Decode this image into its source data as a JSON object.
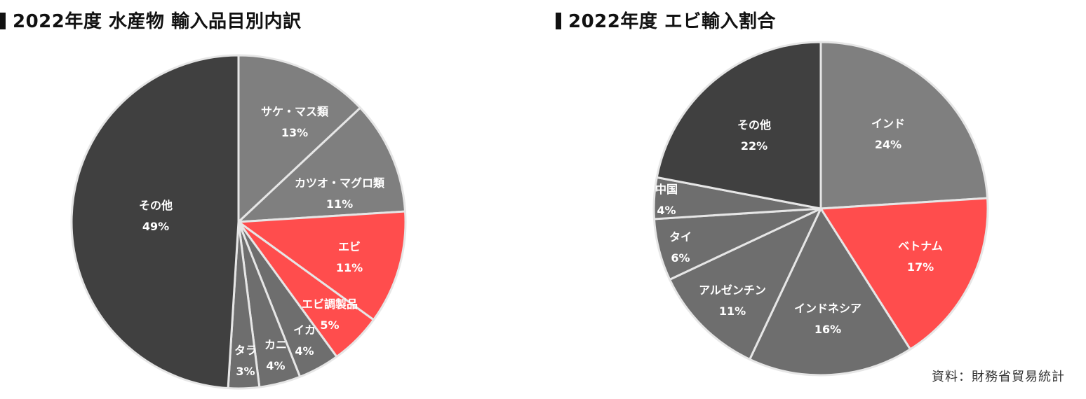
{
  "chart_data": [
    {
      "type": "pie",
      "title": "2022年度 水産物 輸入品目別内訳",
      "unit": "%",
      "slices": [
        {
          "label": "サケ・マス類",
          "value": 13,
          "value_label": "13%",
          "color": "#7f7f7f"
        },
        {
          "label": "カツオ・マグロ類",
          "value": 11,
          "value_label": "11%",
          "color": "#7f7f7f"
        },
        {
          "label": "エビ",
          "value": 11,
          "value_label": "11%",
          "color": "#ff4d4d"
        },
        {
          "label": "エビ調製品",
          "value": 5,
          "value_label": "5%",
          "color": "#ff4d4d"
        },
        {
          "label": "イカ",
          "value": 4,
          "value_label": "4%",
          "color": "#6e6e6e"
        },
        {
          "label": "カニ",
          "value": 4,
          "value_label": "4%",
          "color": "#6e6e6e"
        },
        {
          "label": "タラ",
          "value": 3,
          "value_label": "3%",
          "color": "#6e6e6e"
        },
        {
          "label": "その他",
          "value": 49,
          "value_label": "49%",
          "color": "#404040"
        }
      ]
    },
    {
      "type": "pie",
      "title": "2022年度 エビ輸入割合",
      "unit": "%",
      "slices": [
        {
          "label": "インド",
          "value": 24,
          "value_label": "24%",
          "color": "#7f7f7f"
        },
        {
          "label": "ベトナム",
          "value": 17,
          "value_label": "17%",
          "color": "#ff4d4d"
        },
        {
          "label": "インドネシア",
          "value": 16,
          "value_label": "16%",
          "color": "#6e6e6e"
        },
        {
          "label": "アルゼンチン",
          "value": 11,
          "value_label": "11%",
          "color": "#6e6e6e"
        },
        {
          "label": "タイ",
          "value": 6,
          "value_label": "6%",
          "color": "#6e6e6e"
        },
        {
          "label": "中国",
          "value": 4,
          "value_label": "4%",
          "color": "#6e6e6e"
        },
        {
          "label": "その他",
          "value": 22,
          "value_label": "22%",
          "color": "#404040"
        }
      ]
    }
  ],
  "source_note": "資料：財務省貿易統計"
}
